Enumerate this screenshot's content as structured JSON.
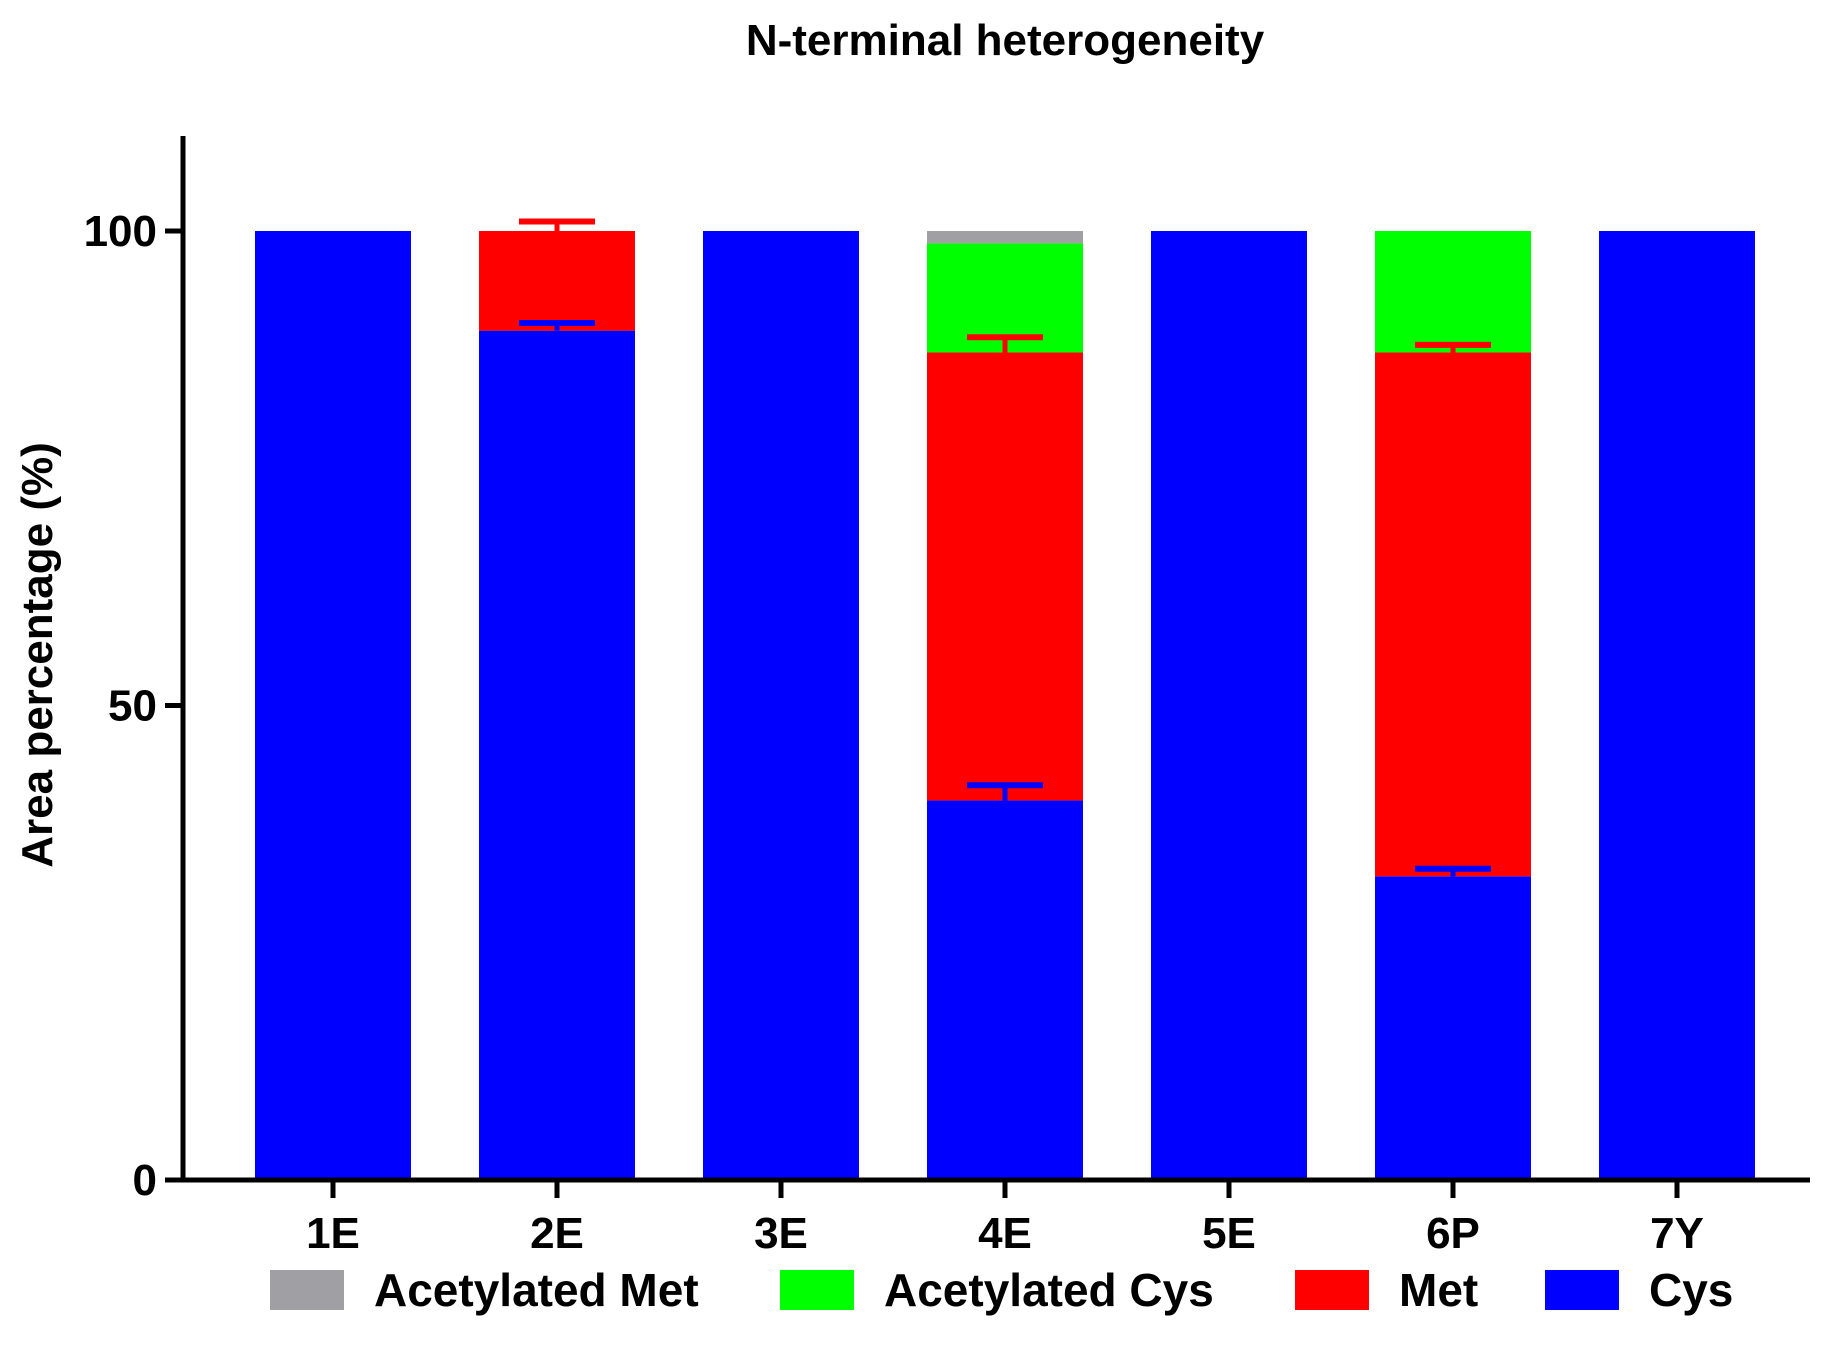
{
  "chart_data": {
    "type": "bar",
    "stacked": true,
    "title": "N-terminal heterogeneity",
    "xlabel": "",
    "ylabel": "Area percentage (%)",
    "ylim": [
      0,
      110
    ],
    "yticks": [
      0,
      50,
      100
    ],
    "yticks_text": [
      "0",
      "50",
      "100"
    ],
    "categories": [
      "1E",
      "2E",
      "3E",
      "4E",
      "5E",
      "6P",
      "7Y"
    ],
    "series": [
      {
        "name": "Cys",
        "color": "#0000FF",
        "values": [
          100,
          89.5,
          100,
          40,
          100,
          32,
          100
        ],
        "errors": [
          0,
          0.8,
          0,
          1.6,
          0,
          0.8,
          0
        ]
      },
      {
        "name": "Met",
        "color": "#FF0000",
        "values": [
          0,
          10.5,
          0,
          47.2,
          0,
          55.2,
          0
        ],
        "errors": [
          0,
          1.0,
          0,
          1.6,
          0,
          0.8,
          0
        ]
      },
      {
        "name": "Acetylated Cys",
        "color": "#00FF00",
        "values": [
          0,
          0,
          0,
          11.5,
          0,
          12.8,
          0
        ],
        "errors": [
          0,
          0,
          0,
          0,
          0,
          0,
          0
        ]
      },
      {
        "name": "Acetylated Met",
        "color": "#A0A0A4",
        "values": [
          0,
          0,
          0,
          1.3,
          0,
          0,
          0
        ],
        "errors": [
          0,
          0,
          0,
          0,
          0,
          0,
          0
        ]
      }
    ],
    "legend": {
      "position": "bottom",
      "order": [
        "Acetylated Met",
        "Acetylated Cys",
        "Met",
        "Cys"
      ]
    }
  }
}
